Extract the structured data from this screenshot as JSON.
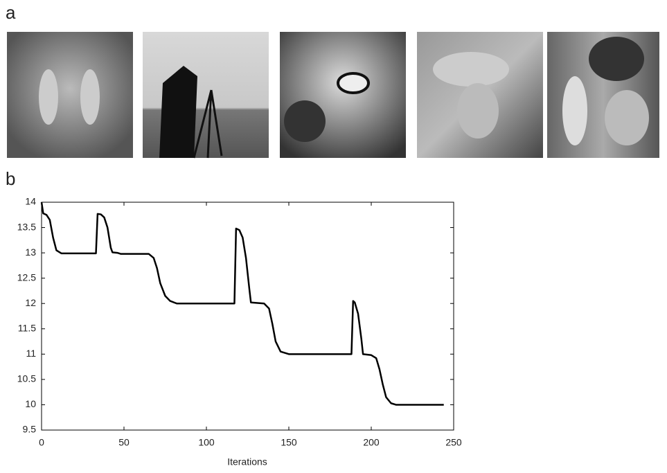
{
  "panel_labels": [
    "a",
    "b"
  ],
  "chart_data": {
    "type": "line",
    "x_label": "Iterations",
    "x": [
      0,
      1,
      3,
      5,
      7,
      9,
      12,
      33,
      34,
      36,
      38,
      40,
      42,
      43,
      46,
      48,
      65,
      68,
      70,
      72,
      75,
      78,
      82,
      117,
      118,
      120,
      122,
      124,
      126,
      127,
      135,
      138,
      140,
      142,
      145,
      150,
      188,
      189,
      190,
      192,
      194,
      195,
      200,
      203,
      205,
      207,
      209,
      212,
      215,
      244
    ],
    "values": [
      14,
      13.78,
      13.75,
      13.65,
      13.3,
      13.05,
      12.99,
      12.99,
      13.77,
      13.76,
      13.7,
      13.5,
      13.1,
      13.01,
      13.0,
      12.98,
      12.98,
      12.9,
      12.7,
      12.4,
      12.15,
      12.05,
      12.0,
      12.0,
      13.48,
      13.45,
      13.3,
      12.9,
      12.3,
      12.02,
      12.0,
      11.9,
      11.6,
      11.25,
      11.05,
      11.0,
      11.0,
      12.05,
      12.02,
      11.8,
      11.3,
      11.0,
      10.98,
      10.92,
      10.7,
      10.4,
      10.15,
      10.03,
      10.0,
      10.0
    ],
    "color": "#000000",
    "xlim": [
      0,
      250
    ],
    "xticks": [
      0,
      50,
      100,
      150,
      200,
      250
    ],
    "ylim": [
      9.5,
      14
    ],
    "yticks": [
      9.5,
      10,
      10.5,
      11,
      11.5,
      12,
      12.5,
      13,
      13.5,
      14
    ]
  }
}
